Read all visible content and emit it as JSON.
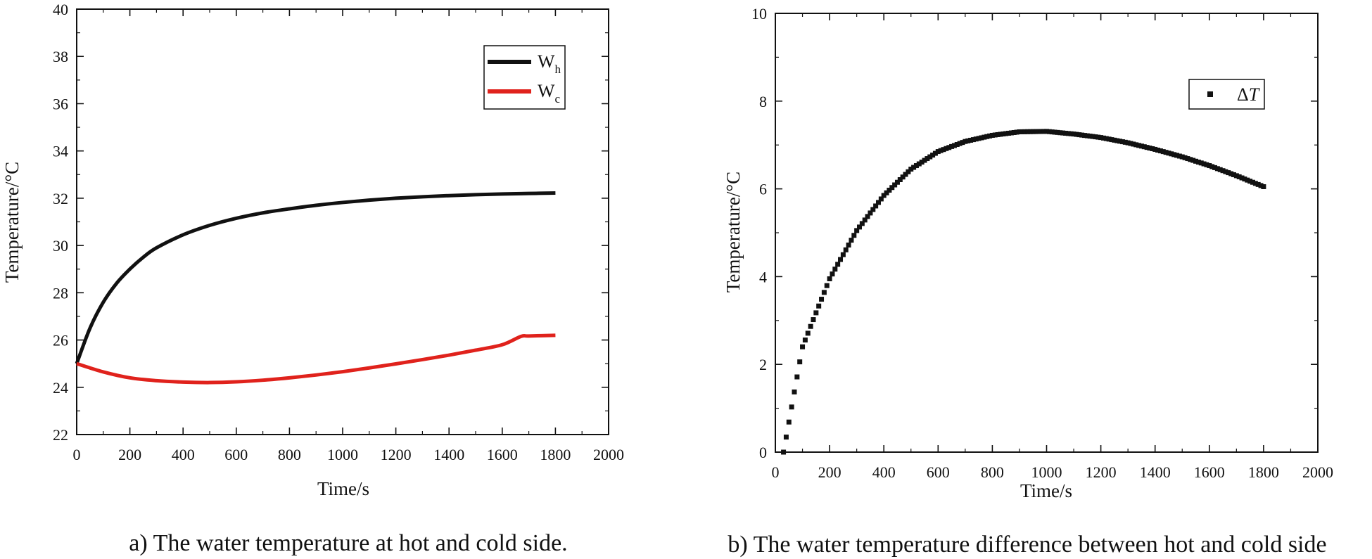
{
  "chart_data": [
    {
      "id": "a",
      "type": "line",
      "caption": "a) The water temperature at hot and cold side.",
      "xlabel": "Time/s",
      "ylabel": "Temperature/°C",
      "xlim": [
        0,
        2000
      ],
      "ylim": [
        22,
        40
      ],
      "xticks": [
        0,
        200,
        400,
        600,
        800,
        1000,
        1200,
        1400,
        1600,
        1800,
        2000
      ],
      "yticks": [
        22,
        24,
        26,
        28,
        30,
        32,
        34,
        36,
        38,
        40
      ],
      "grid": false,
      "legend_position": "top-right",
      "series": [
        {
          "name": "W",
          "sub": "h",
          "color": "#111111",
          "x": [
            0,
            50,
            100,
            150,
            200,
            250,
            300,
            400,
            500,
            600,
            700,
            800,
            900,
            1000,
            1100,
            1200,
            1300,
            1400,
            1500,
            1600,
            1700,
            1800
          ],
          "y": [
            25.0,
            26.5,
            27.6,
            28.4,
            29.0,
            29.5,
            29.9,
            30.45,
            30.85,
            31.15,
            31.38,
            31.55,
            31.7,
            31.82,
            31.92,
            32.0,
            32.06,
            32.11,
            32.15,
            32.18,
            32.2,
            32.22
          ]
        },
        {
          "name": "W",
          "sub": "c",
          "color": "#e0221c",
          "x": [
            0,
            100,
            200,
            300,
            400,
            500,
            600,
            700,
            800,
            900,
            1000,
            1100,
            1200,
            1300,
            1400,
            1500,
            1600,
            1670,
            1700,
            1800
          ],
          "y": [
            25.0,
            24.65,
            24.4,
            24.28,
            24.22,
            24.2,
            24.23,
            24.3,
            24.4,
            24.52,
            24.66,
            24.82,
            24.99,
            25.17,
            25.36,
            25.57,
            25.8,
            26.15,
            26.17,
            26.2
          ]
        }
      ]
    },
    {
      "id": "b",
      "type": "scatter",
      "caption": "b) The water temperature difference between hot and cold side",
      "xlabel": "Time/s",
      "ylabel": "Temperature/°C",
      "xlim": [
        0,
        2000
      ],
      "ylim": [
        0,
        10
      ],
      "xticks": [
        0,
        200,
        400,
        600,
        800,
        1000,
        1200,
        1400,
        1600,
        1800,
        2000
      ],
      "yticks": [
        0,
        2,
        4,
        6,
        8,
        10
      ],
      "grid": false,
      "legend_position": "top-right",
      "series": [
        {
          "name": "Δ",
          "name_italic": "T",
          "color": "#111111",
          "x": [
            30,
            100,
            200,
            300,
            400,
            500,
            600,
            700,
            800,
            900,
            1000,
            1100,
            1200,
            1300,
            1400,
            1500,
            1600,
            1700,
            1800
          ],
          "y": [
            0.0,
            2.4,
            3.95,
            5.05,
            5.85,
            6.45,
            6.85,
            7.08,
            7.22,
            7.3,
            7.31,
            7.25,
            7.17,
            7.05,
            6.9,
            6.73,
            6.53,
            6.3,
            6.05
          ]
        }
      ]
    }
  ]
}
